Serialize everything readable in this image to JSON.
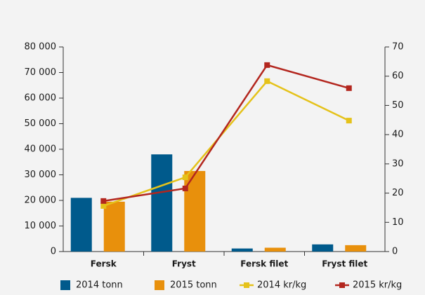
{
  "chart_data": {
    "type": "bar",
    "categories": [
      "Fersk",
      "Fryst",
      "Fersk filet",
      "Fryst filet"
    ],
    "series": [
      {
        "name": "2014 tonn",
        "color": "#005a8c",
        "type": "bar",
        "values": [
          21000,
          38000,
          1200,
          2800
        ]
      },
      {
        "name": "2015 tonn",
        "color": "#e8900c",
        "type": "bar",
        "values": [
          19500,
          31500,
          1500,
          2500
        ]
      },
      {
        "name": "2014 kr/kg",
        "color": "#e5c21a",
        "type": "line",
        "axis": "y2",
        "values": [
          15.6,
          25.4,
          58.3,
          44.8
        ]
      },
      {
        "name": "2015 kr/kg",
        "color": "#b3261e",
        "type": "line",
        "axis": "y2",
        "values": [
          17.3,
          21.6,
          63.8,
          55.9
        ]
      }
    ],
    "ylim": [
      0,
      80000
    ],
    "yticks": [
      0,
      {
        "value": 10000,
        "label": "10 000"
      },
      {
        "value": 20000,
        "label": "20 000"
      },
      {
        "value": 30000,
        "label": "30 000"
      },
      {
        "value": 40000,
        "label": "40 000"
      },
      {
        "value": 50000,
        "label": "50 000"
      },
      {
        "value": 60000,
        "label": "60 000"
      },
      {
        "value": 70000,
        "label": "70 000"
      },
      {
        "value": 80000,
        "label": "80 000"
      }
    ],
    "y2lim": [
      0,
      70
    ],
    "y2ticks": [
      0,
      10,
      20,
      30,
      40,
      50,
      60,
      70
    ],
    "legend": "bottom"
  }
}
